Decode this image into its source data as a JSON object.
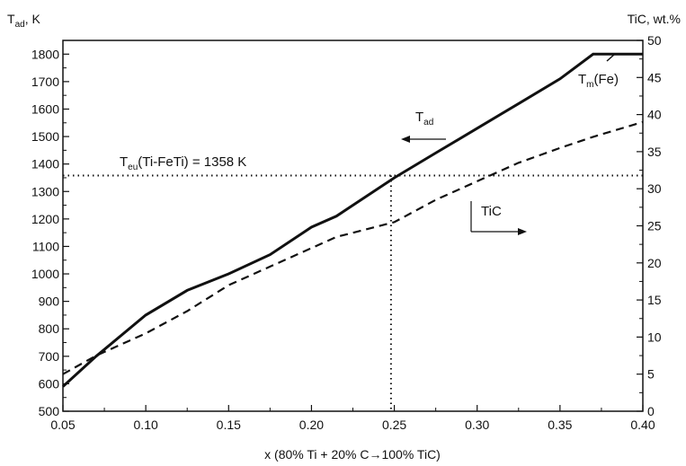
{
  "chart_data": {
    "type": "line",
    "x": [
      0.05,
      0.07,
      0.1,
      0.125,
      0.15,
      0.175,
      0.2,
      0.215,
      0.25,
      0.275,
      0.3,
      0.325,
      0.35,
      0.37,
      0.4
    ],
    "xlim": [
      0.05,
      0.4
    ],
    "xticks": [
      "0.05",
      "0.10",
      "0.15",
      "0.20",
      "0.25",
      "0.30",
      "0.35",
      "0.40"
    ],
    "xlabel": "x (80% Ti + 20% C→100% TiC)",
    "ylim_left": [
      500,
      1850
    ],
    "yticks_left": [
      "500",
      "600",
      "700",
      "800",
      "900",
      "1000",
      "1100",
      "1200",
      "1300",
      "1400",
      "1500",
      "1600",
      "1700",
      "1800"
    ],
    "ylabel_left": {
      "main": "T",
      "sub": "ad",
      "unit": ", K"
    },
    "ylim_right": [
      0,
      50
    ],
    "yticks_right": [
      "0",
      "5",
      "10",
      "15",
      "20",
      "25",
      "30",
      "35",
      "40",
      "45",
      "50"
    ],
    "ylabel_right": "TiC, wt.%",
    "series": [
      {
        "axis": "left",
        "style": "solid",
        "color": "#111111",
        "values": [
          590,
          700,
          850,
          940,
          1000,
          1070,
          1170,
          1210,
          1350,
          1440,
          1530,
          1620,
          1710,
          1800,
          1800
        ]
      },
      {
        "axis": "right",
        "style": "dashed",
        "color": "#111111",
        "values": [
          5,
          7.5,
          10.5,
          13.5,
          17,
          19.5,
          22,
          23.5,
          25.5,
          28.5,
          31,
          33.5,
          35.5,
          37,
          39
        ]
      }
    ],
    "reference_line": {
      "y": 1358,
      "x_drop": 0.248,
      "label_main": "T",
      "label_sub": "eu",
      "label_rest": "(Ti-FeTi) = 1358 K"
    },
    "annotations": {
      "t_ad": {
        "main": "T",
        "sub": "ad"
      },
      "tic": "TiC",
      "tm": {
        "main": "T",
        "sub": "m",
        "rest": "(Fe)"
      }
    },
    "grid": false
  }
}
